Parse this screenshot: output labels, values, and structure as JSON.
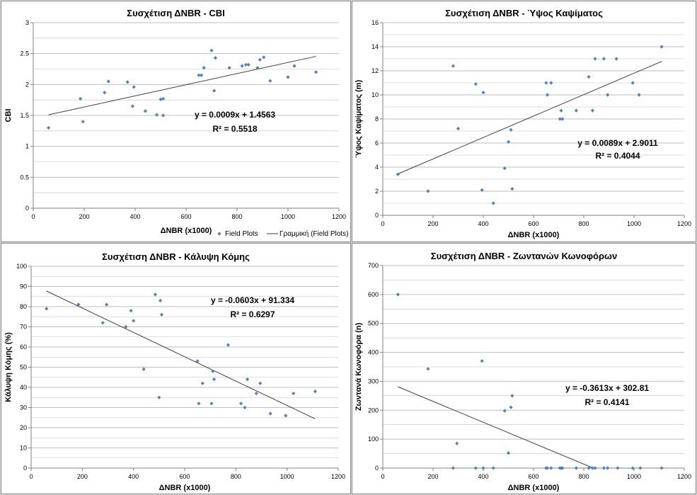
{
  "colors": {
    "points": "#4f81bd",
    "grid": "#bfbfbf",
    "trend": "#404040",
    "axis": "#808080"
  },
  "chart_data": [
    {
      "type": "scatter",
      "title": "Συσχέτιση ΔNBR - CBI",
      "xlabel": "ΔNBR (x1000)",
      "ylabel": "CBI",
      "xlim": [
        0,
        1200
      ],
      "xstep": 200,
      "ylim": [
        0,
        3
      ],
      "ystep": 0.5,
      "ydecimals": 1,
      "minor_gridlines": 2,
      "legend": [
        "Field Plots",
        "Γραμμική (Field Plots)"
      ],
      "legend_position": "bottom",
      "trendline": {
        "slope": 0.0009,
        "intercept": 1.4563,
        "x_range": [
          60,
          1110
        ]
      },
      "equation": "y = 0.0009x + 1.4563",
      "r2": "R² = 0.5518",
      "series": [
        {
          "name": "Field Plots",
          "points": [
            [
              60,
              1.3
            ],
            [
              185,
              1.77
            ],
            [
              195,
              1.4
            ],
            [
              280,
              1.87
            ],
            [
              295,
              2.05
            ],
            [
              370,
              2.04
            ],
            [
              390,
              1.65
            ],
            [
              395,
              1.96
            ],
            [
              440,
              1.57
            ],
            [
              485,
              1.51
            ],
            [
              500,
              1.76
            ],
            [
              510,
              1.77
            ],
            [
              510,
              1.5
            ],
            [
              650,
              2.15
            ],
            [
              660,
              2.15
            ],
            [
              670,
              2.27
            ],
            [
              700,
              2.55
            ],
            [
              710,
              1.9
            ],
            [
              715,
              2.43
            ],
            [
              770,
              2.27
            ],
            [
              820,
              2.3
            ],
            [
              835,
              2.32
            ],
            [
              845,
              2.32
            ],
            [
              880,
              2.27
            ],
            [
              890,
              2.4
            ],
            [
              905,
              2.44
            ],
            [
              930,
              2.06
            ],
            [
              1000,
              2.12
            ],
            [
              1025,
              2.3
            ],
            [
              1110,
              2.2
            ]
          ]
        }
      ]
    },
    {
      "type": "scatter",
      "title": "Συσχέτιση ΔNBR - Ύψος Καψίματος",
      "xlabel": "ΔNBR (x1000)",
      "ylabel": "Ύψος Καψίματος (m)",
      "xlim": [
        0,
        1200
      ],
      "xstep": 200,
      "ylim": [
        0,
        16
      ],
      "ystep": 2,
      "ydecimals": 0,
      "minor_gridlines": 2,
      "trendline": {
        "slope": 0.0089,
        "intercept": 2.9011,
        "x_range": [
          60,
          1110
        ]
      },
      "equation": "y = 0.0089x + 2.9011",
      "r2": "R² = 0.4044",
      "series": [
        {
          "name": "Field Plots",
          "points": [
            [
              60,
              3.4
            ],
            [
              180,
              2.0
            ],
            [
              280,
              12.4
            ],
            [
              300,
              7.2
            ],
            [
              370,
              10.9
            ],
            [
              395,
              2.1
            ],
            [
              400,
              10.2
            ],
            [
              440,
              1.0
            ],
            [
              485,
              3.9
            ],
            [
              500,
              6.1
            ],
            [
              510,
              7.1
            ],
            [
              515,
              2.2
            ],
            [
              650,
              11.0
            ],
            [
              655,
              10.0
            ],
            [
              670,
              11.0
            ],
            [
              705,
              8.0
            ],
            [
              710,
              8.7
            ],
            [
              715,
              8.0
            ],
            [
              770,
              8.7
            ],
            [
              820,
              11.5
            ],
            [
              835,
              8.7
            ],
            [
              845,
              13.0
            ],
            [
              880,
              13.0
            ],
            [
              895,
              10.0
            ],
            [
              930,
              13.0
            ],
            [
              995,
              11.0
            ],
            [
              1020,
              10.0
            ],
            [
              1110,
              14.0
            ]
          ]
        }
      ]
    },
    {
      "type": "scatter",
      "title": "Συσχέτιση ΔNBR - Κάλυψη Κόμης",
      "xlabel": "ΔNBR (x1000)",
      "ylabel": "Κάλυψη Κόμης (%)",
      "xlim": [
        0,
        1200
      ],
      "xstep": 200,
      "ylim": [
        0,
        100
      ],
      "ystep": 10,
      "ydecimals": 0,
      "minor_gridlines": 2,
      "trendline": {
        "slope": -0.0603,
        "intercept": 91.334,
        "x_range": [
          60,
          1110
        ]
      },
      "equation": "y = -0.0603x + 91.334",
      "r2": "R² = 0.6297",
      "series": [
        {
          "name": "Field Plots",
          "points": [
            [
              60,
              79
            ],
            [
              185,
              81
            ],
            [
              280,
              72
            ],
            [
              295,
              81
            ],
            [
              370,
              70
            ],
            [
              390,
              78
            ],
            [
              400,
              73
            ],
            [
              440,
              49
            ],
            [
              485,
              86
            ],
            [
              500,
              35
            ],
            [
              505,
              83
            ],
            [
              510,
              76
            ],
            [
              650,
              53
            ],
            [
              655,
              32
            ],
            [
              670,
              42
            ],
            [
              705,
              32
            ],
            [
              710,
              48
            ],
            [
              715,
              44
            ],
            [
              770,
              61
            ],
            [
              820,
              32
            ],
            [
              835,
              30
            ],
            [
              845,
              44
            ],
            [
              880,
              37
            ],
            [
              895,
              42
            ],
            [
              935,
              27
            ],
            [
              995,
              26
            ],
            [
              1025,
              37
            ],
            [
              1110,
              38
            ]
          ]
        }
      ]
    },
    {
      "type": "scatter",
      "title": "Συσχέτιση ΔNBR - Ζωντανών Κωνοφόρων",
      "xlabel": "ΔNBR (x1000)",
      "ylabel": "Ζωντανά Κωνοφόρα (n)",
      "xlim": [
        0,
        1200
      ],
      "xstep": 200,
      "ylim": [
        0,
        700
      ],
      "ystep": 100,
      "ydecimals": 0,
      "minor_gridlines": 2,
      "trendline": {
        "slope": -0.3613,
        "intercept": 302.81,
        "x_range": [
          60,
          838
        ]
      },
      "equation": "y = -0.3613x + 302.81",
      "r2": "R² = 0.4141",
      "series": [
        {
          "name": "Field Plots",
          "points": [
            [
              60,
              600
            ],
            [
              180,
              343
            ],
            [
              280,
              0
            ],
            [
              295,
              85
            ],
            [
              370,
              0
            ],
            [
              395,
              370
            ],
            [
              400,
              0
            ],
            [
              440,
              0
            ],
            [
              485,
              198
            ],
            [
              500,
              52
            ],
            [
              510,
              210
            ],
            [
              515,
              250
            ],
            [
              650,
              0
            ],
            [
              655,
              0
            ],
            [
              670,
              0
            ],
            [
              705,
              0
            ],
            [
              710,
              0
            ],
            [
              715,
              0
            ],
            [
              770,
              0
            ],
            [
              820,
              0
            ],
            [
              835,
              0
            ],
            [
              845,
              0
            ],
            [
              880,
              0
            ],
            [
              895,
              0
            ],
            [
              935,
              0
            ],
            [
              995,
              0
            ],
            [
              1025,
              0
            ],
            [
              1110,
              0
            ]
          ]
        }
      ]
    }
  ]
}
